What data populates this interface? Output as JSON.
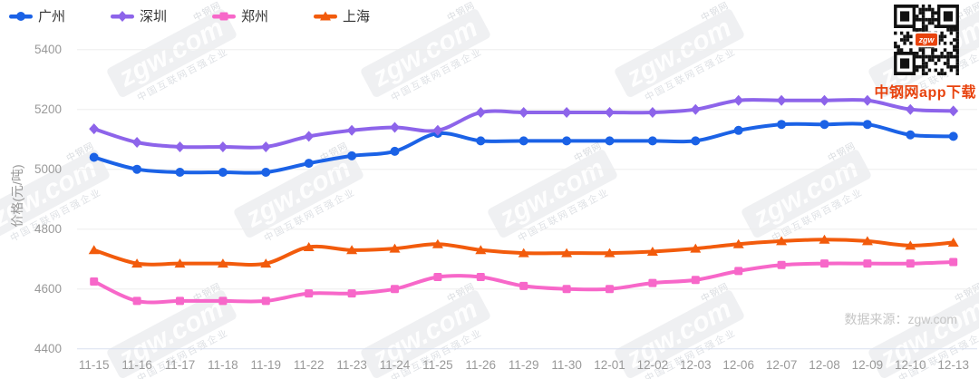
{
  "chart_data": {
    "type": "line",
    "title": "",
    "xlabel": "",
    "ylabel": "价格(元/吨)",
    "ylim": [
      4400,
      5400
    ],
    "ytick_step": 200,
    "grid": true,
    "legend_position": "top-left",
    "categories": [
      "11-15",
      "11-16",
      "11-17",
      "11-18",
      "11-19",
      "11-22",
      "11-23",
      "11-24",
      "11-25",
      "11-26",
      "11-29",
      "11-30",
      "12-01",
      "12-02",
      "12-03",
      "12-06",
      "12-07",
      "12-08",
      "12-09",
      "12-10",
      "12-13"
    ],
    "series": [
      {
        "name": "广州",
        "color": "#1b62e6",
        "symbol": "circle",
        "values": [
          5040,
          5000,
          4990,
          4990,
          4990,
          5020,
          5045,
          5060,
          5120,
          5095,
          5095,
          5095,
          5095,
          5095,
          5095,
          5130,
          5150,
          5150,
          5150,
          5115,
          5110
        ]
      },
      {
        "name": "深圳",
        "color": "#8d64ea",
        "symbol": "diamond",
        "values": [
          5135,
          5090,
          5075,
          5075,
          5075,
          5110,
          5130,
          5140,
          5130,
          5190,
          5190,
          5190,
          5190,
          5190,
          5200,
          5230,
          5230,
          5230,
          5230,
          5200,
          5195
        ]
      },
      {
        "name": "郑州",
        "color": "#f767c9",
        "symbol": "square",
        "values": [
          4625,
          4560,
          4560,
          4560,
          4560,
          4585,
          4585,
          4600,
          4640,
          4640,
          4610,
          4600,
          4600,
          4620,
          4630,
          4660,
          4680,
          4685,
          4685,
          4685,
          4690
        ]
      },
      {
        "name": "上海",
        "color": "#f25b0c",
        "symbol": "triangle",
        "values": [
          4730,
          4685,
          4685,
          4685,
          4685,
          4740,
          4730,
          4735,
          4750,
          4730,
          4720,
          4720,
          4720,
          4725,
          4735,
          4750,
          4760,
          4765,
          4760,
          4745,
          4755
        ]
      }
    ]
  },
  "watermark": {
    "brand": "zgw.com",
    "company": "中钢网",
    "slogan": "中国互联网百强企业"
  },
  "qr": {
    "caption": "中钢网app下载",
    "center_label": "zgw"
  },
  "footer": {
    "source": "数据来源：zgw.com"
  }
}
